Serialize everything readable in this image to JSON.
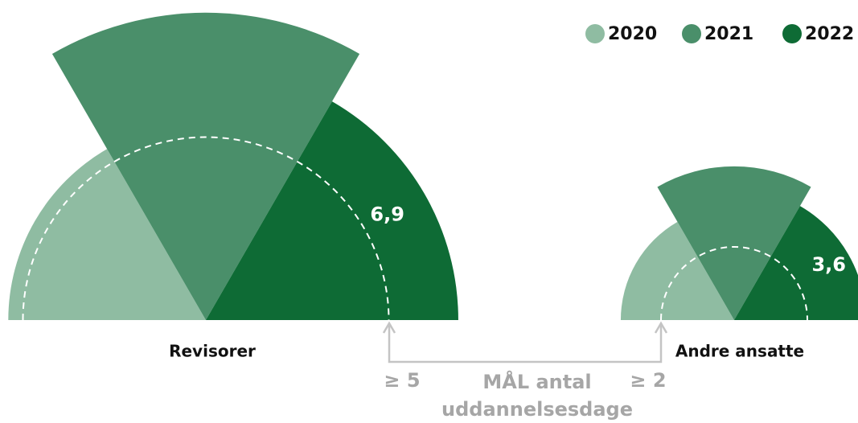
{
  "chart_data": [
    {
      "type": "polar_semicircle",
      "title": "Revisorer",
      "categories": [
        "2020",
        "2021",
        "2022"
      ],
      "values": [
        5.4,
        8.4,
        6.9
      ],
      "value_labels": [
        null,
        null,
        "6,9"
      ],
      "colors": [
        "#8fbca2",
        "#4a8f6a",
        "#0e6b35"
      ],
      "target": 5,
      "target_label": "≥ 5"
    },
    {
      "type": "polar_semicircle",
      "title": "Andre ansatte",
      "categories": [
        "2020",
        "2021",
        "2022"
      ],
      "values": [
        3.1,
        4.2,
        3.6
      ],
      "value_labels": [
        null,
        null,
        "3,6"
      ],
      "colors": [
        "#8fbca2",
        "#4a8f6a",
        "#0e6b35"
      ],
      "target": 2,
      "target_label": "≥ 2"
    }
  ],
  "annotation": [
    "MÅL antal",
    "uddannelsesdage"
  ]
}
